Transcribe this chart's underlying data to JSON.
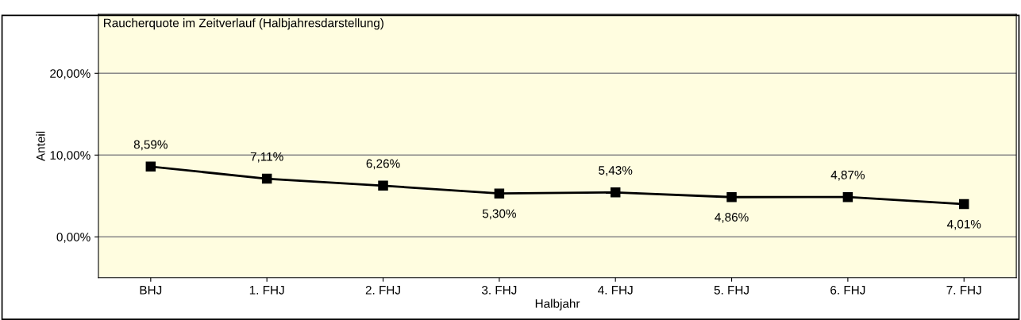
{
  "chart_data": {
    "type": "line",
    "title": "Raucherquote im Zeitverlauf (Halbjahresdarstellung)",
    "xlabel": "Halbjahr",
    "ylabel": "Anteil",
    "categories": [
      "BHJ",
      "1. FHJ",
      "2. FHJ",
      "3. FHJ",
      "4. FHJ",
      "5. FHJ",
      "6. FHJ",
      "7. FHJ"
    ],
    "series": [
      {
        "color": "#000000",
        "values": [
          8.59,
          7.11,
          6.26,
          5.3,
          5.43,
          4.86,
          4.87,
          4.01
        ],
        "value_labels": [
          "8,59%",
          "7,11%",
          "6,26%",
          "5,30%",
          "5,43%",
          "4,86%",
          "4,87%",
          "4,01%"
        ]
      }
    ],
    "ylim": [
      -5,
      27.2
    ],
    "yticks": [
      {
        "value": 0,
        "label": "0,00%"
      },
      {
        "value": 10,
        "label": "10,00%"
      },
      {
        "value": 20,
        "label": "20,00%"
      }
    ],
    "grid": "y",
    "marker": "square",
    "line_style": "solid"
  }
}
